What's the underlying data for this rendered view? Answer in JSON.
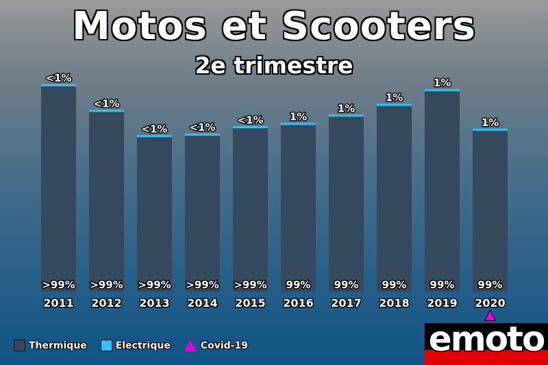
{
  "title": "Motos et Scooters",
  "subtitle": "2e trimestre",
  "colors": {
    "thermique": "#34495e",
    "electrique": "#36c2f4",
    "covid": "#e600e6"
  },
  "legend": [
    {
      "label": "Thermique",
      "color": "#34495e",
      "shape": "square"
    },
    {
      "label": "Electrique",
      "color": "#36c2f4",
      "shape": "square"
    },
    {
      "label": "Covid-19",
      "color": "#e600e6",
      "shape": "triangle"
    }
  ],
  "logo": {
    "text": "emoto"
  },
  "chart_data": {
    "type": "bar",
    "stacked": true,
    "title": "Motos et Scooters",
    "subtitle": "2e trimestre",
    "categories": [
      "2011",
      "2012",
      "2013",
      "2014",
      "2015",
      "2016",
      "2017",
      "2018",
      "2019",
      "2020"
    ],
    "totals_relative": [
      100,
      87.6,
      75.4,
      76.1,
      79.7,
      81.3,
      85.3,
      90.5,
      97.6,
      78.5
    ],
    "series": [
      {
        "name": "Thermique",
        "labels": [
          ">99%",
          ">99%",
          ">99%",
          ">99%",
          ">99%",
          "99%",
          "99%",
          "99%",
          "99%",
          "99%"
        ]
      },
      {
        "name": "Electrique",
        "labels": [
          "<1%",
          "<1%",
          "<1%",
          "<1%",
          "<1%",
          "1%",
          "1%",
          "1%",
          "1%",
          "1%"
        ]
      }
    ],
    "annotations": [
      {
        "category": "2020",
        "marker": "Covid-19"
      }
    ],
    "axes": {
      "y": "hidden"
    },
    "grid": false,
    "legend_position": "bottom-left"
  }
}
